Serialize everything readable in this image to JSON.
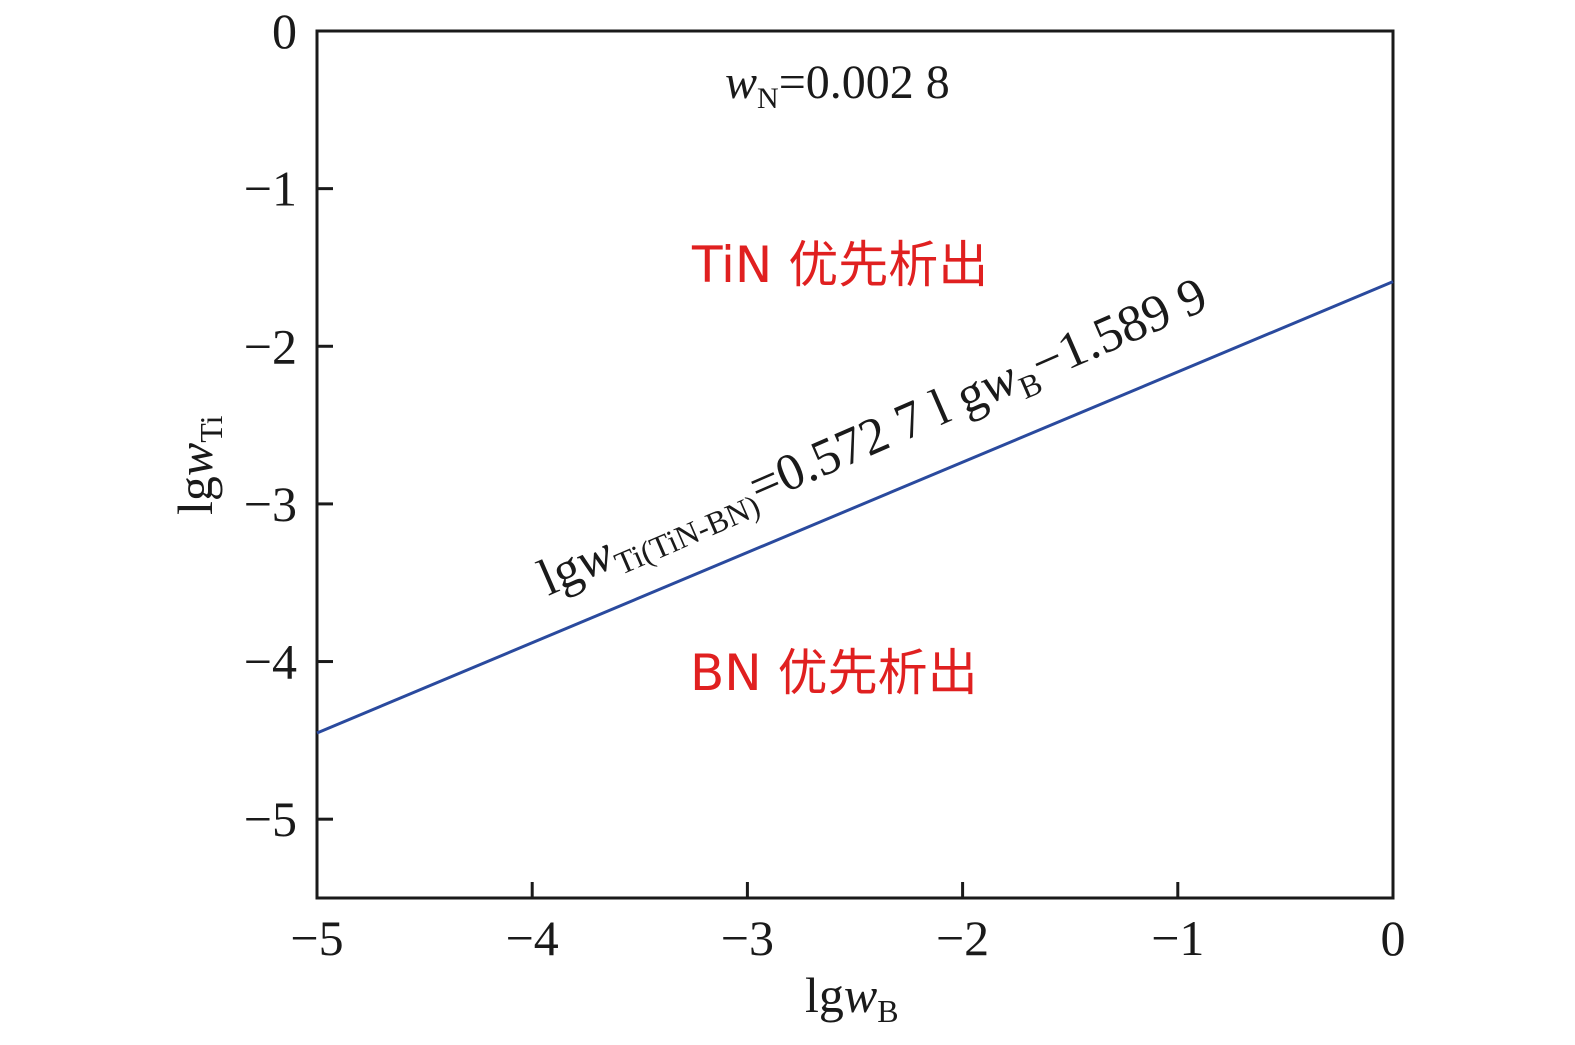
{
  "chart_data": {
    "type": "line",
    "xlabel": {
      "main": "lg",
      "var": "w",
      "sub": "B"
    },
    "ylabel": {
      "main": "lg",
      "var": "w",
      "sub": "Ti"
    },
    "xlim": [
      -5,
      0
    ],
    "ylim": [
      -5.5,
      0
    ],
    "xticks": [
      -5,
      -4,
      -3,
      -2,
      -1,
      0
    ],
    "yticks": [
      0,
      -1,
      -2,
      -3,
      -4,
      -5
    ],
    "xtick_labels": [
      "−5",
      "−4",
      "−3",
      "−2",
      "−1",
      "0"
    ],
    "ytick_labels": [
      "0",
      "−1",
      "−2",
      "−3",
      "−4",
      "−5"
    ],
    "grid": false,
    "series": [
      {
        "slope": 0.5727,
        "intercept": -1.5899,
        "x": [
          -5,
          0
        ],
        "y": [
          -4.4534,
          -1.5899
        ],
        "color": "#2a4a9e"
      }
    ],
    "annotations": {
      "condition": {
        "var": "w",
        "sub": "N",
        "rest": "=0.002 8"
      },
      "region_top": "TiN 优先析出",
      "region_bottom": "BN 优先析出",
      "region_color": "#e02020",
      "equation": {
        "p1": "lg",
        "p2": "w",
        "p3": "Ti(TiN-BN)",
        "p4": "=0.572 7 l g",
        "p5": "w",
        "p6": "B",
        "p7": "−1.589 9"
      }
    }
  }
}
